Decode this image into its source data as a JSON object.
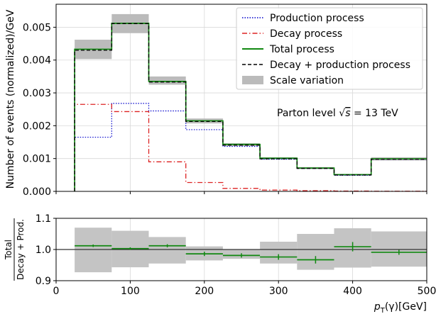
{
  "chart_data": [
    {
      "type": "step",
      "panel": "main",
      "ylabel": "Number of events (normalized)/GeV",
      "xlim": [
        0,
        500
      ],
      "ylim": [
        0,
        0.0057
      ],
      "x_ticks": [
        0,
        100,
        200,
        300,
        400,
        500
      ],
      "y_ticks": [
        0,
        0.001,
        0.002,
        0.003,
        0.004,
        0.005
      ],
      "y_tick_labels": [
        "0.000",
        "0.001",
        "0.002",
        "0.003",
        "0.004",
        "0.005"
      ],
      "grid": true,
      "legend_position": "top-right",
      "bin_edges": [
        25,
        75,
        125,
        175,
        225,
        275,
        325,
        375,
        425,
        500
      ],
      "series": [
        {
          "name": "Production process",
          "color": "#0000cc",
          "style": "dotted",
          "values": [
            0.00165,
            0.00268,
            0.00245,
            0.00188,
            0.00137,
            0.00098,
            0.0007,
            0.00049,
            0.00098
          ]
        },
        {
          "name": "Decay process",
          "color": "#dd2222",
          "style": "dashdot",
          "values": [
            0.00265,
            0.00243,
            0.0009,
            0.00027,
            9e-05,
            4e-05,
            2e-05,
            1e-05,
            5e-06
          ]
        },
        {
          "name": "Total process",
          "color": "#118811",
          "style": "solid",
          "values": [
            0.00433,
            0.00512,
            0.00335,
            0.00215,
            0.00143,
            0.00101,
            0.00071,
            0.00051,
            0.00099
          ]
        },
        {
          "name": "Decay + production process",
          "color": "#000000",
          "style": "dashed",
          "values": [
            0.0043,
            0.00511,
            0.00333,
            0.00213,
            0.00141,
            0.00099,
            0.0007,
            0.0005,
            0.00098
          ]
        }
      ],
      "scale_variation": {
        "name": "Scale variation",
        "color": "#bbbbbb",
        "low": [
          0.00403,
          0.00482,
          0.00325,
          0.00207,
          0.00138,
          0.00098,
          0.00068,
          0.00048,
          0.00094
        ],
        "high": [
          0.00462,
          0.0054,
          0.0035,
          0.00222,
          0.00147,
          0.00104,
          0.00074,
          0.00053,
          0.00104
        ]
      },
      "annotation": "Parton level √s = 13 TeV"
    },
    {
      "type": "ratio",
      "panel": "ratio",
      "ylabel_numerator": "Total",
      "ylabel_denominator": "Decay + Prod.",
      "xlabel": "p_T(γ)[GeV]",
      "xlim": [
        0,
        500
      ],
      "ylim": [
        0.9,
        1.1
      ],
      "x_ticks": [
        0,
        100,
        200,
        300,
        400,
        500
      ],
      "y_ticks": [
        0.9,
        1.0,
        1.1
      ],
      "y_tick_labels": [
        "0.9",
        "1.0",
        "1.1"
      ],
      "reference_line": 1.0,
      "bin_edges": [
        25,
        75,
        125,
        175,
        225,
        275,
        325,
        375,
        425,
        500
      ],
      "band_low": [
        0.927,
        0.943,
        0.955,
        0.965,
        0.97,
        0.955,
        0.935,
        0.942,
        0.945
      ],
      "band_high": [
        1.07,
        1.06,
        1.04,
        1.01,
        1.0,
        1.025,
        1.05,
        1.068,
        1.058
      ],
      "points_x": [
        50,
        100,
        150,
        200,
        250,
        300,
        350,
        400,
        462.5
      ],
      "points_y": [
        1.012,
        1.003,
        1.012,
        0.986,
        0.981,
        0.976,
        0.967,
        1.009,
        0.991
      ],
      "errors": [
        0.004,
        0.004,
        0.005,
        0.007,
        0.007,
        0.009,
        0.012,
        0.015,
        0.008
      ],
      "color": "#118811"
    }
  ]
}
